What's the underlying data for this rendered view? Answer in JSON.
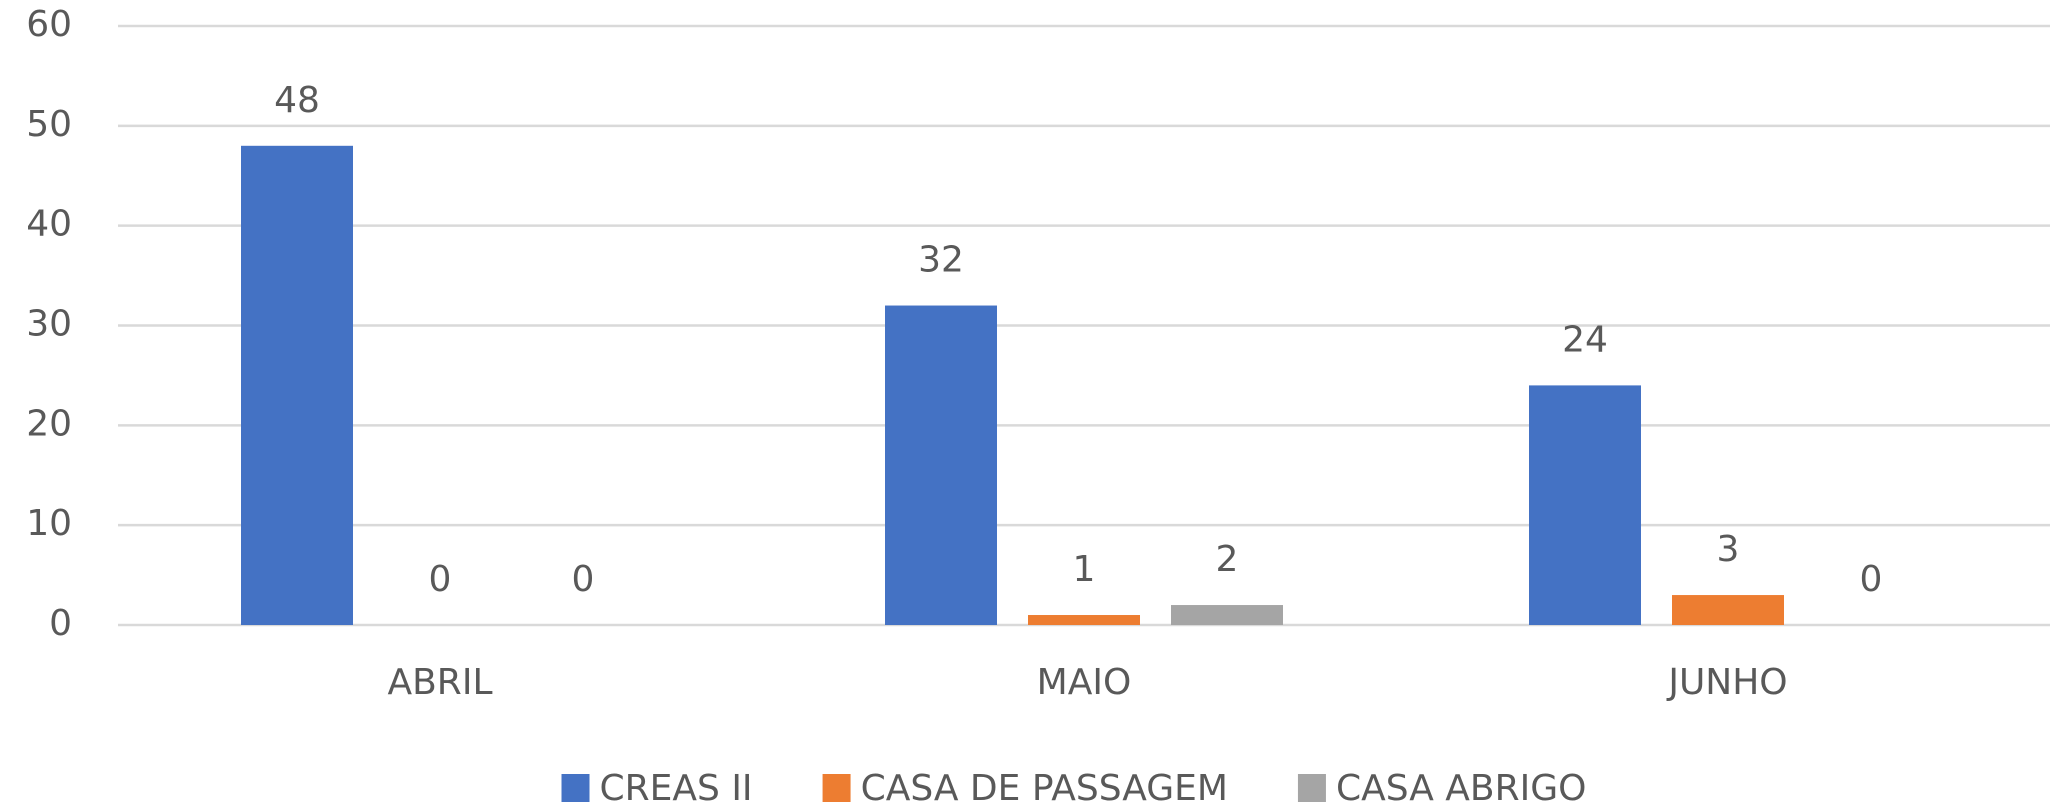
{
  "chart_data": {
    "type": "bar",
    "categories": [
      "ABRIL",
      "MAIO",
      "JUNHO"
    ],
    "series": [
      {
        "name": "CREAS II",
        "color": "#4472c4",
        "values": [
          48,
          32,
          24
        ]
      },
      {
        "name": "CASA DE PASSAGEM",
        "color": "#ed7d31",
        "values": [
          0,
          1,
          3
        ]
      },
      {
        "name": "CASA ABRIGO",
        "color": "#a5a5a5",
        "values": [
          0,
          2,
          0
        ]
      }
    ],
    "ylim": [
      0,
      60
    ],
    "yticks": [
      0,
      10,
      20,
      30,
      40,
      50,
      60
    ],
    "grid": true,
    "legend": "bottom"
  }
}
